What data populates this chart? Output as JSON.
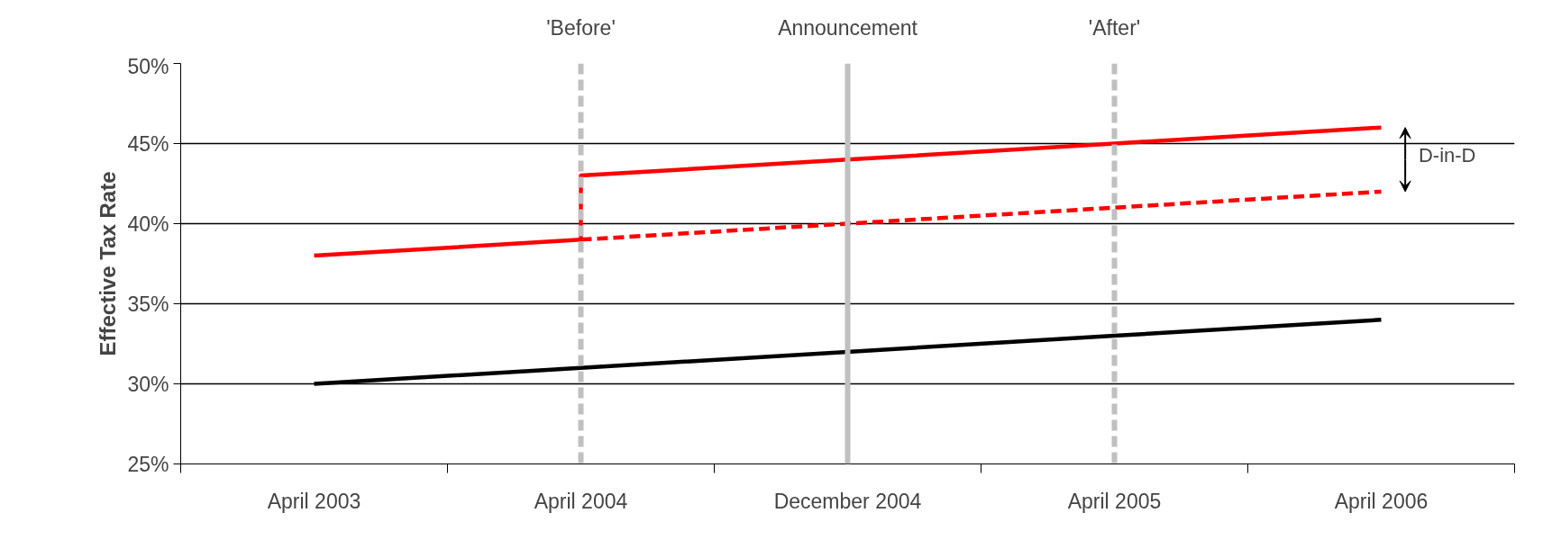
{
  "chart_data": {
    "type": "line",
    "ylabel": "Effective Tax Rate",
    "categories": [
      "April 2003",
      "April 2004",
      "December 2004",
      "April 2005",
      "April 2006"
    ],
    "series": [
      {
        "color": "#ff0000",
        "x": [
          "April 2003",
          "April 2004",
          "April 2004",
          "December 2004",
          "April 2005",
          "April 2006"
        ],
        "values": [
          38,
          39,
          43,
          44,
          45,
          46
        ]
      },
      {
        "color": "#ff0000",
        "line_style": "dashed",
        "x": [
          "April 2004",
          "December 2004",
          "April 2005",
          "April 2006"
        ],
        "values": [
          39,
          40,
          41,
          42
        ]
      },
      {
        "color": "#000000",
        "values": [
          30,
          31,
          32,
          33,
          34
        ]
      }
    ],
    "ylim": [
      25,
      50
    ],
    "yticks": [
      {
        "value": 25,
        "label": "25%"
      },
      {
        "value": 30,
        "label": "30%"
      },
      {
        "value": 35,
        "label": "35%"
      },
      {
        "value": 40,
        "label": "40%"
      },
      {
        "value": 45,
        "label": "45%"
      },
      {
        "value": 50,
        "label": "50%"
      }
    ],
    "grid": "y",
    "ref_lines": [
      {
        "axis": "x",
        "value": "April 2004",
        "label": "'Before'",
        "color": "#c0c0c0",
        "line_style": "dashed"
      },
      {
        "axis": "x",
        "value": "December 2004",
        "label": "Announcement",
        "color": "#c0c0c0",
        "line_style": "solid"
      },
      {
        "axis": "x",
        "value": "April 2005",
        "label": "'After'",
        "color": "#c0c0c0",
        "line_style": "dashed"
      }
    ],
    "annotations": [
      "D-in-D"
    ]
  }
}
